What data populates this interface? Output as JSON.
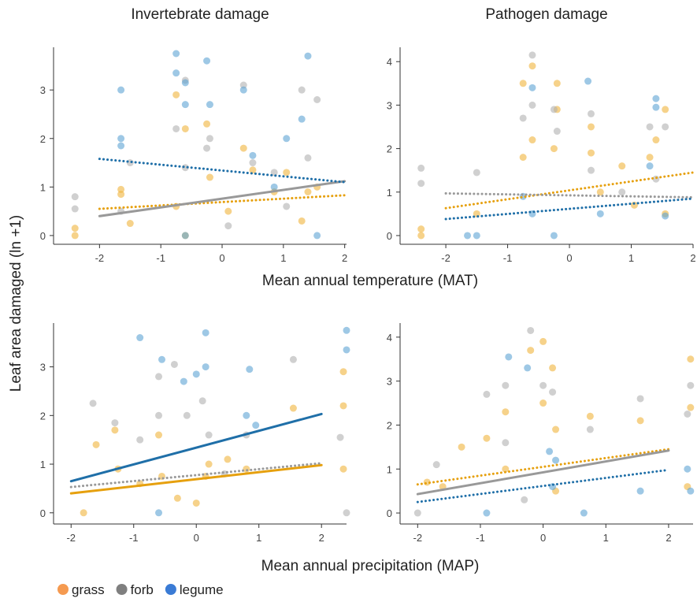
{
  "figure": {
    "ylabel": "Leaf area damaged (ln +1)",
    "xlabels": [
      "Mean annual temperature (MAT)",
      "Mean annual precipitation (MAP)"
    ]
  },
  "chart_data": [
    {
      "type": "scatter",
      "title": "Invertebrate damage",
      "xlim": [
        -2.75,
        2.03
      ],
      "ylim": [
        -0.18,
        3.88
      ],
      "xticks": [
        -2,
        -1,
        0,
        1,
        2
      ],
      "yticks": [
        0,
        1,
        2,
        3
      ],
      "series": [
        {
          "name": "grass",
          "color": "#f0b43c",
          "legend_color": "#f59a50",
          "x": [
            -2.4,
            -2.4,
            -1.65,
            -1.65,
            -1.5,
            -0.75,
            -0.75,
            -0.6,
            -0.6,
            -0.25,
            -0.2,
            0.1,
            0.35,
            0.5,
            0.85,
            1.05,
            1.3,
            1.4,
            1.55
          ],
          "values": [
            0.15,
            0,
            0.95,
            0.85,
            0.25,
            2.9,
            0.6,
            2.2,
            0,
            2.3,
            1.2,
            0.5,
            1.8,
            1.35,
            0.9,
            1.3,
            0.3,
            0.9,
            1.0
          ],
          "trend": {
            "x": [
              -2,
              2
            ],
            "values": [
              0.55,
              0.83
            ],
            "line_color": "#e6a00e",
            "style": "dotted"
          }
        },
        {
          "name": "forb",
          "color": "#b0b0b0",
          "legend_color": "#7f7f7f",
          "x": [
            -2.4,
            -2.4,
            -1.65,
            -1.5,
            -0.75,
            -0.6,
            -0.6,
            -0.25,
            -0.2,
            0.1,
            0.35,
            0.5,
            0.85,
            1.05,
            1.3,
            1.4,
            1.55
          ],
          "values": [
            0.8,
            0.55,
            0.5,
            1.5,
            2.2,
            1.4,
            3.2,
            1.8,
            2.0,
            0.2,
            3.1,
            1.5,
            1.3,
            0.6,
            3.0,
            1.6,
            2.8
          ],
          "trend": {
            "x": [
              -2,
              2
            ],
            "values": [
              0.4,
              1.12
            ],
            "line_color": "#999999",
            "style": "solid"
          }
        },
        {
          "name": "legume",
          "color": "#5ea3d3",
          "legend_color": "#3a7bd5",
          "x": [
            -1.65,
            -1.65,
            -1.65,
            -0.75,
            -0.75,
            -0.6,
            -0.6,
            -0.25,
            -0.2,
            -0.6,
            0.35,
            0.5,
            1.05,
            1.3,
            1.4,
            1.55,
            0.85
          ],
          "values": [
            3.0,
            2.0,
            1.85,
            3.75,
            3.35,
            2.7,
            3.15,
            3.6,
            2.7,
            0,
            3.0,
            1.65,
            2.0,
            2.4,
            3.7,
            0,
            1.0
          ],
          "trend": {
            "x": [
              -2,
              2
            ],
            "values": [
              1.58,
              1.1
            ],
            "line_color": "#1f6fa8",
            "style": "dotted"
          }
        }
      ]
    },
    {
      "type": "scatter",
      "title": "Pathogen damage",
      "xlim": [
        -2.74,
        2.0
      ],
      "ylim": [
        -0.2,
        4.33
      ],
      "xticks": [
        -2,
        -1,
        0,
        1,
        2
      ],
      "yticks": [
        0,
        1,
        2,
        3,
        4
      ],
      "series": [
        {
          "name": "grass",
          "color": "#f0b43c",
          "x": [
            -2.4,
            -2.4,
            -1.5,
            -0.75,
            -0.75,
            -0.6,
            -0.6,
            -0.25,
            -0.2,
            -0.2,
            0.35,
            0.35,
            0.5,
            0.85,
            1.05,
            1.3,
            1.4,
            1.55,
            1.55
          ],
          "values": [
            0.15,
            0,
            0.5,
            3.5,
            1.8,
            3.9,
            2.2,
            2.0,
            3.5,
            2.9,
            2.5,
            1.9,
            1.0,
            1.6,
            0.7,
            1.8,
            2.2,
            2.9,
            0.5
          ],
          "trend": {
            "x": [
              -2,
              2
            ],
            "values": [
              0.63,
              1.45
            ],
            "line_color": "#e6a00e",
            "style": "dotted"
          }
        },
        {
          "name": "forb",
          "color": "#b0b0b0",
          "x": [
            -2.4,
            -2.4,
            -1.5,
            -0.75,
            -0.6,
            -0.6,
            -0.25,
            -0.2,
            0.35,
            0.35,
            0.85,
            1.3,
            1.4,
            1.55
          ],
          "values": [
            1.55,
            1.2,
            1.45,
            2.7,
            4.15,
            3.0,
            2.9,
            2.4,
            2.8,
            1.5,
            1.0,
            2.5,
            1.3,
            2.5
          ],
          "trend": {
            "x": [
              -2,
              2
            ],
            "values": [
              0.97,
              0.88
            ],
            "line_color": "#999999",
            "style": "dotted"
          }
        },
        {
          "name": "legume",
          "color": "#5ea3d3",
          "x": [
            -1.5,
            -1.65,
            -0.6,
            -0.6,
            -0.25,
            0.3,
            0.5,
            1.3,
            1.4,
            1.55,
            1.4,
            -0.75
          ],
          "values": [
            0,
            0,
            3.4,
            0.5,
            0,
            3.55,
            0.5,
            1.6,
            3.15,
            0.45,
            2.95,
            0.9
          ],
          "trend": {
            "x": [
              -2,
              2
            ],
            "values": [
              0.38,
              0.85
            ],
            "line_color": "#1f6fa8",
            "style": "dotted"
          }
        }
      ]
    },
    {
      "type": "scatter",
      "xlim": [
        -2.28,
        2.4
      ],
      "ylim": [
        -0.23,
        3.9
      ],
      "xticks": [
        -2,
        -1,
        0,
        1,
        2
      ],
      "yticks": [
        0,
        1,
        2,
        3
      ],
      "series": [
        {
          "name": "grass",
          "color": "#f0b43c",
          "x": [
            -1.6,
            -1.3,
            -1.25,
            -0.9,
            -0.6,
            -0.55,
            -0.3,
            0,
            0.15,
            0.2,
            0.5,
            0.8,
            1.55,
            2.35,
            2.35,
            2.35,
            -1.8
          ],
          "values": [
            1.4,
            1.7,
            0.9,
            0.6,
            1.6,
            0.75,
            0.3,
            0.2,
            0.75,
            1.0,
            1.1,
            0.9,
            2.15,
            2.9,
            0.9,
            2.2,
            0
          ],
          "trend": {
            "x": [
              -2,
              2
            ],
            "values": [
              0.4,
              0.98
            ],
            "line_color": "#e6a00e",
            "style": "solid"
          }
        },
        {
          "name": "forb",
          "color": "#b0b0b0",
          "x": [
            -1.65,
            -1.3,
            -0.9,
            -0.6,
            -0.6,
            -0.15,
            0.1,
            0.2,
            0.45,
            0.8,
            1.55,
            2.3,
            2.4,
            -0.35
          ],
          "values": [
            2.25,
            1.85,
            1.5,
            2.8,
            2.0,
            2.0,
            2.3,
            1.6,
            0.8,
            1.6,
            3.15,
            1.55,
            0,
            3.05
          ],
          "trend": {
            "x": [
              -2,
              2
            ],
            "values": [
              0.53,
              1.02
            ],
            "line_color": "#999999",
            "style": "dotted"
          }
        },
        {
          "name": "legume",
          "color": "#5ea3d3",
          "x": [
            -0.9,
            -0.55,
            -0.2,
            0.15,
            0.15,
            0.85,
            0.8,
            2.4,
            2.4,
            -0.6,
            0,
            0.95
          ],
          "values": [
            3.6,
            3.15,
            2.7,
            3.7,
            3.0,
            2.95,
            2.0,
            3.75,
            3.35,
            0,
            2.85,
            1.8
          ],
          "trend": {
            "x": [
              -2,
              2
            ],
            "values": [
              0.65,
              2.03
            ],
            "line_color": "#1f6fa8",
            "style": "solid"
          }
        }
      ]
    },
    {
      "type": "scatter",
      "xlim": [
        -2.28,
        2.39
      ],
      "ylim": [
        -0.25,
        4.32
      ],
      "xticks": [
        -2,
        -1,
        0,
        1,
        2
      ],
      "yticks": [
        0,
        1,
        2,
        3,
        4
      ],
      "series": [
        {
          "name": "grass",
          "color": "#f0b43c",
          "x": [
            -1.6,
            -1.3,
            -0.9,
            -0.6,
            -0.6,
            -0.2,
            0,
            0,
            0.15,
            0.2,
            0.2,
            0.75,
            1.55,
            2.35,
            2.35,
            2.3,
            -1.85
          ],
          "values": [
            0.6,
            1.5,
            1.7,
            2.3,
            1.0,
            3.7,
            3.9,
            2.5,
            3.3,
            1.9,
            0.5,
            2.2,
            2.1,
            3.5,
            2.4,
            0.6,
            0.7
          ],
          "trend": {
            "x": [
              -2,
              2
            ],
            "values": [
              0.65,
              1.45
            ],
            "line_color": "#e6a00e",
            "style": "dotted"
          }
        },
        {
          "name": "forb",
          "color": "#b0b0b0",
          "x": [
            -1.7,
            -0.9,
            -0.6,
            -0.6,
            -0.2,
            0,
            0.15,
            0.75,
            1.55,
            2.3,
            2.35,
            -2.0,
            -0.3
          ],
          "values": [
            1.1,
            2.7,
            2.9,
            1.6,
            4.15,
            2.9,
            2.75,
            1.9,
            2.6,
            2.25,
            2.9,
            0,
            0.3
          ],
          "trend": {
            "x": [
              -2,
              2
            ],
            "values": [
              0.43,
              1.42
            ],
            "line_color": "#999999",
            "style": "solid"
          }
        },
        {
          "name": "legume",
          "color": "#5ea3d3",
          "x": [
            -0.55,
            0.1,
            0.2,
            -0.25,
            0.15,
            2.35,
            2.3,
            1.55,
            0.65,
            -0.9
          ],
          "values": [
            3.55,
            1.4,
            1.2,
            3.3,
            0.6,
            0.5,
            1.0,
            0.5,
            0,
            0
          ],
          "trend": {
            "x": [
              -2,
              2
            ],
            "values": [
              0.25,
              0.98
            ],
            "line_color": "#1f6fa8",
            "style": "dotted"
          }
        }
      ]
    }
  ]
}
